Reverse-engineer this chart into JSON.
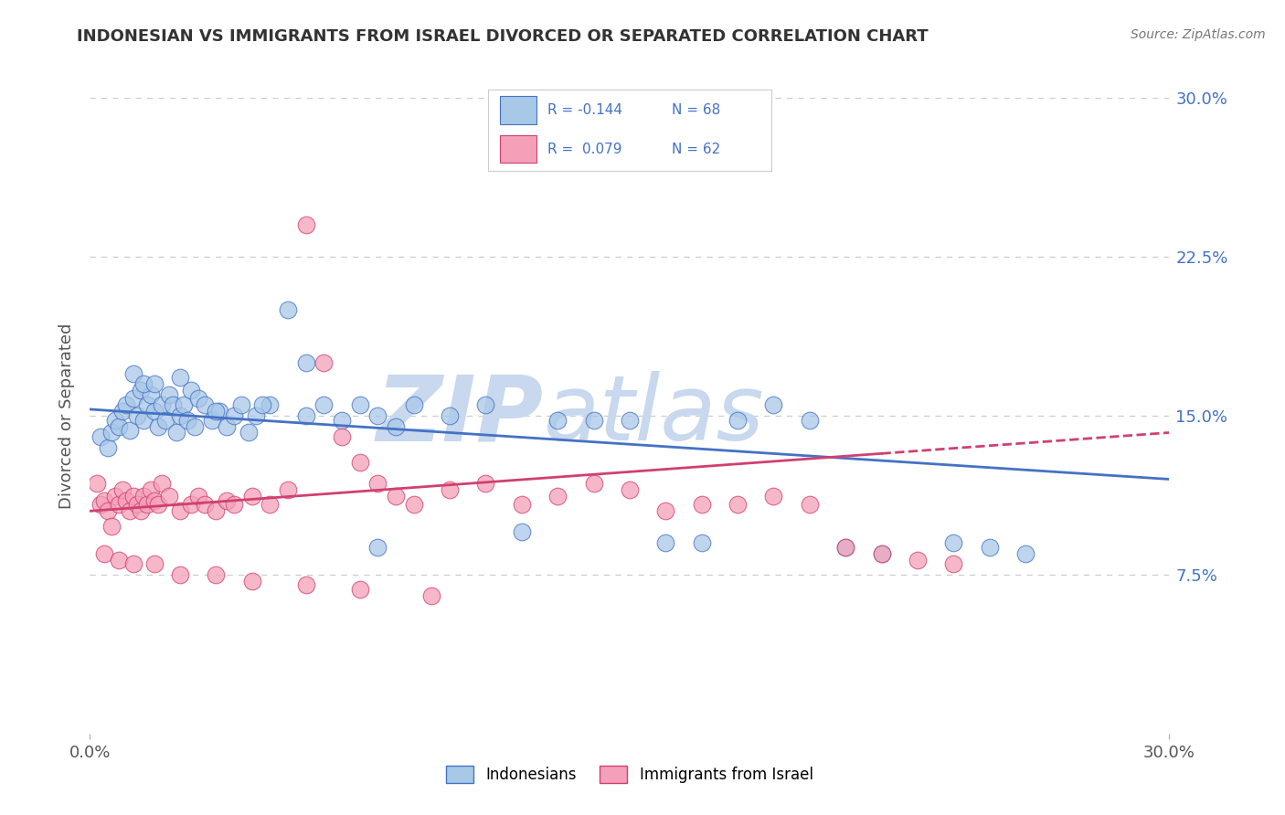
{
  "title": "INDONESIAN VS IMMIGRANTS FROM ISRAEL DIVORCED OR SEPARATED CORRELATION CHART",
  "source": "Source: ZipAtlas.com",
  "ylabel": "Divorced or Separated",
  "xlim": [
    0.0,
    0.3
  ],
  "ylim": [
    0.0,
    0.3
  ],
  "x_tick_labels": [
    "0.0%",
    "30.0%"
  ],
  "y_tick_labels_right": [
    "7.5%",
    "15.0%",
    "22.5%",
    "30.0%"
  ],
  "y_ticks_right": [
    0.075,
    0.15,
    0.225,
    0.3
  ],
  "legend_label1": "Indonesians",
  "legend_label2": "Immigrants from Israel",
  "R1": -0.144,
  "N1": 68,
  "R2": 0.079,
  "N2": 62,
  "color_blue": "#A8C8E8",
  "color_pink": "#F4A0B8",
  "line_color_blue": "#4472C4",
  "line_color_pink": "#D04070",
  "watermark_zip": "ZIP",
  "watermark_atlas": "atlas",
  "watermark_color_zip": "#C8D8EE",
  "watermark_color_atlas": "#C8D8EE",
  "background_color": "#FFFFFF",
  "grid_color": "#CCCCCC",
  "indonesian_x": [
    0.003,
    0.005,
    0.006,
    0.007,
    0.008,
    0.009,
    0.01,
    0.011,
    0.012,
    0.013,
    0.014,
    0.015,
    0.016,
    0.017,
    0.018,
    0.019,
    0.02,
    0.021,
    0.022,
    0.023,
    0.024,
    0.025,
    0.026,
    0.027,
    0.028,
    0.029,
    0.03,
    0.032,
    0.034,
    0.036,
    0.038,
    0.04,
    0.042,
    0.044,
    0.046,
    0.05,
    0.055,
    0.06,
    0.065,
    0.07,
    0.075,
    0.08,
    0.085,
    0.09,
    0.1,
    0.11,
    0.12,
    0.13,
    0.14,
    0.15,
    0.16,
    0.17,
    0.18,
    0.19,
    0.2,
    0.21,
    0.22,
    0.24,
    0.25,
    0.26,
    0.012,
    0.015,
    0.018,
    0.025,
    0.035,
    0.048,
    0.06,
    0.08
  ],
  "indonesian_y": [
    0.14,
    0.135,
    0.142,
    0.148,
    0.145,
    0.152,
    0.155,
    0.143,
    0.158,
    0.15,
    0.162,
    0.148,
    0.155,
    0.16,
    0.152,
    0.145,
    0.155,
    0.148,
    0.16,
    0.155,
    0.142,
    0.15,
    0.155,
    0.148,
    0.162,
    0.145,
    0.158,
    0.155,
    0.148,
    0.152,
    0.145,
    0.15,
    0.155,
    0.142,
    0.15,
    0.155,
    0.2,
    0.175,
    0.155,
    0.148,
    0.155,
    0.15,
    0.145,
    0.155,
    0.15,
    0.155,
    0.095,
    0.148,
    0.148,
    0.148,
    0.09,
    0.09,
    0.148,
    0.155,
    0.148,
    0.088,
    0.085,
    0.09,
    0.088,
    0.085,
    0.17,
    0.165,
    0.165,
    0.168,
    0.152,
    0.155,
    0.15,
    0.088
  ],
  "israel_x": [
    0.002,
    0.003,
    0.004,
    0.005,
    0.006,
    0.007,
    0.008,
    0.009,
    0.01,
    0.011,
    0.012,
    0.013,
    0.014,
    0.015,
    0.016,
    0.017,
    0.018,
    0.019,
    0.02,
    0.022,
    0.025,
    0.028,
    0.03,
    0.032,
    0.035,
    0.038,
    0.04,
    0.045,
    0.05,
    0.055,
    0.06,
    0.065,
    0.07,
    0.075,
    0.08,
    0.085,
    0.09,
    0.1,
    0.11,
    0.12,
    0.13,
    0.14,
    0.15,
    0.16,
    0.17,
    0.18,
    0.19,
    0.2,
    0.21,
    0.22,
    0.23,
    0.24,
    0.004,
    0.008,
    0.012,
    0.018,
    0.025,
    0.035,
    0.045,
    0.06,
    0.075,
    0.095
  ],
  "israel_y": [
    0.118,
    0.108,
    0.11,
    0.105,
    0.098,
    0.112,
    0.108,
    0.115,
    0.11,
    0.105,
    0.112,
    0.108,
    0.105,
    0.112,
    0.108,
    0.115,
    0.11,
    0.108,
    0.118,
    0.112,
    0.105,
    0.108,
    0.112,
    0.108,
    0.105,
    0.11,
    0.108,
    0.112,
    0.108,
    0.115,
    0.24,
    0.175,
    0.14,
    0.128,
    0.118,
    0.112,
    0.108,
    0.115,
    0.118,
    0.108,
    0.112,
    0.118,
    0.115,
    0.105,
    0.108,
    0.108,
    0.112,
    0.108,
    0.088,
    0.085,
    0.082,
    0.08,
    0.085,
    0.082,
    0.08,
    0.08,
    0.075,
    0.075,
    0.072,
    0.07,
    0.068,
    0.065
  ]
}
